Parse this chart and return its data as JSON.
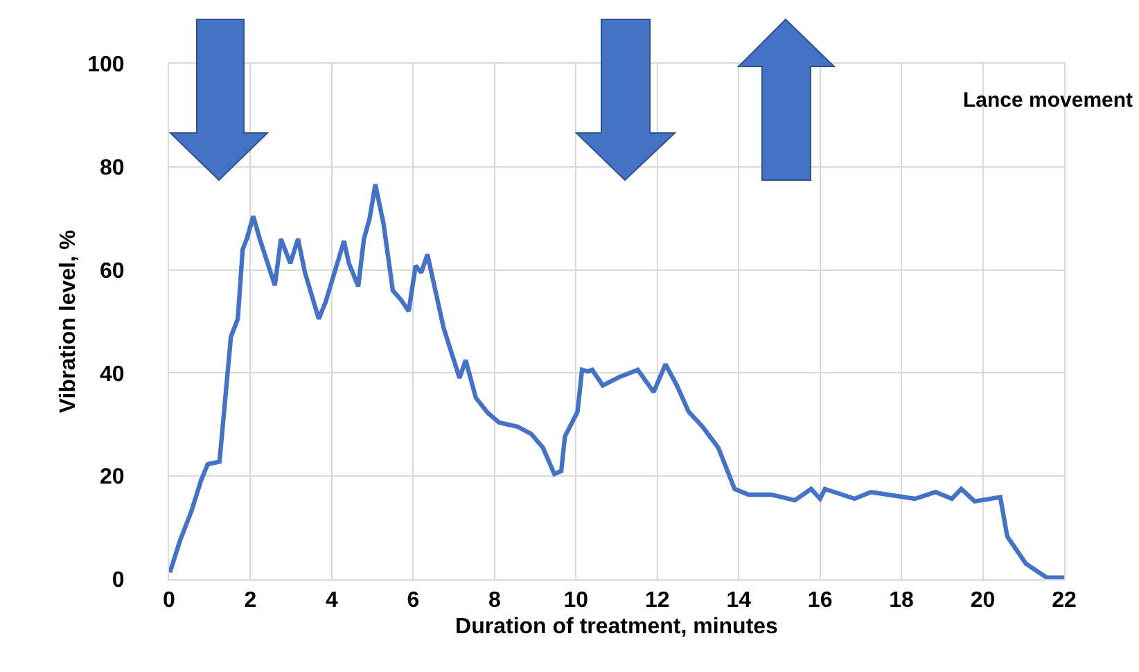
{
  "chart_data": {
    "type": "line",
    "xlabel": "Duration of treatment, minutes",
    "ylabel": "Vibration level, %",
    "annotations": [
      "Lance movement"
    ],
    "x": [
      0.02,
      0.27,
      0.56,
      0.78,
      0.95,
      1.24,
      1.52,
      1.69,
      1.81,
      1.91,
      2.07,
      2.23,
      2.6,
      2.75,
      2.98,
      3.17,
      3.34,
      3.68,
      3.85,
      4.3,
      4.42,
      4.65,
      4.79,
      4.93,
      5.07,
      5.27,
      5.5,
      5.72,
      5.89,
      6.06,
      6.2,
      6.35,
      6.75,
      7.14,
      7.29,
      7.54,
      7.83,
      8.11,
      8.56,
      8.9,
      9.19,
      9.47,
      9.64,
      9.73,
      10.04,
      10.15,
      10.29,
      10.4,
      10.66,
      11.06,
      11.52,
      11.91,
      12.2,
      12.48,
      12.77,
      13.11,
      13.5,
      13.9,
      14.24,
      14.8,
      15.38,
      15.78,
      16.0,
      16.12,
      16.85,
      17.25,
      18.33,
      18.84,
      19.24,
      19.47,
      19.8,
      20.43,
      20.6,
      21.06,
      21.57,
      22.0
    ],
    "series": [
      {
        "color": "#4472c4",
        "values": [
          1.3,
          7.5,
          13.4,
          19,
          22.3,
          22.8,
          47,
          50.5,
          64,
          66,
          70.4,
          66,
          57,
          66,
          61.3,
          66,
          59.5,
          50.5,
          53.8,
          65.6,
          61.3,
          56.8,
          66,
          70,
          76.6,
          69,
          56,
          54,
          52,
          60.8,
          59.5,
          63,
          48.7,
          39,
          42.5,
          35.2,
          32.3,
          30.4,
          29.6,
          28.2,
          25.5,
          20.4,
          21,
          27.7,
          32.5,
          40.6,
          40.3,
          40.6,
          37.6,
          39.2,
          40.6,
          36.3,
          41.7,
          37.6,
          32.5,
          29.6,
          25.5,
          17.5,
          16.4,
          16.4,
          15.3,
          17.5,
          15.6,
          17.5,
          15.6,
          16.9,
          15.6,
          16.9,
          15.6,
          17.5,
          15.1,
          15.9,
          8.3,
          3,
          0.3,
          0.3
        ]
      }
    ],
    "xlim": [
      0,
      22
    ],
    "xticks": [
      0,
      2,
      4,
      6,
      8,
      10,
      12,
      14,
      16,
      18,
      20,
      22
    ],
    "ylim": [
      0,
      100
    ],
    "yticks": [
      0,
      20,
      40,
      60,
      80,
      100
    ],
    "grid": true,
    "marker": "none",
    "line_style": "solid"
  }
}
